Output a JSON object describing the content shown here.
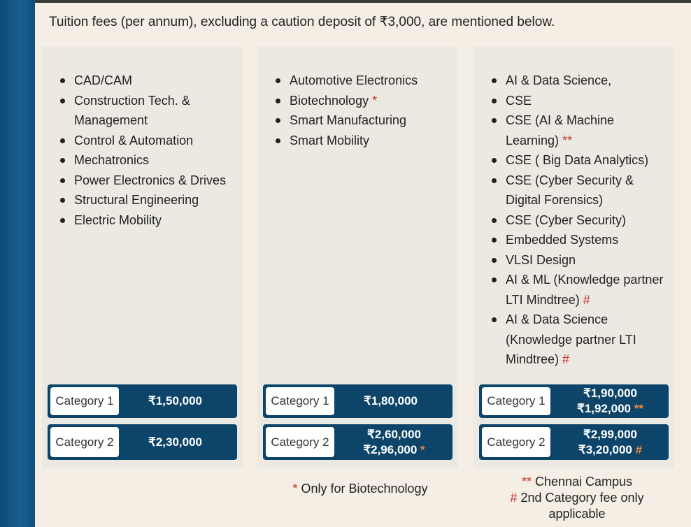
{
  "intro": "Tuition fees (per annum), excluding a caution deposit of ₹3,000, are mentioned below.",
  "colors": {
    "sidebar": "#0d4a78",
    "fee_bar": "#0d4469",
    "mark_red": "#c0392b",
    "mark_orange": "#f0893a"
  },
  "columns": [
    {
      "items": [
        {
          "text": "CAD/CAM"
        },
        {
          "text": "Construction Tech. & Management"
        },
        {
          "text": "Control & Automation"
        },
        {
          "text": "Mechatronics"
        },
        {
          "text": "Power Electronics & Drives"
        },
        {
          "text": "Structural Engineering"
        },
        {
          "text": "Electric Mobility"
        }
      ],
      "fees": [
        {
          "label": "Category 1",
          "amounts": [
            {
              "value": "₹1,50,000"
            }
          ]
        },
        {
          "label": "Category 2",
          "amounts": [
            {
              "value": "₹2,30,000"
            }
          ]
        }
      ]
    },
    {
      "items": [
        {
          "text": "Automotive Electronics"
        },
        {
          "text": "Biotechnology",
          "mark": "*"
        },
        {
          "text": "Smart Manufacturing"
        },
        {
          "text": "Smart Mobility"
        }
      ],
      "fees": [
        {
          "label": "Category 1",
          "amounts": [
            {
              "value": "₹1,80,000"
            }
          ]
        },
        {
          "label": "Category 2",
          "amounts": [
            {
              "value": "₹2,60,000"
            },
            {
              "value": "₹2,96,000",
              "mark": "*"
            }
          ]
        }
      ]
    },
    {
      "items": [
        {
          "text": "AI & Data Science,"
        },
        {
          "text": "CSE"
        },
        {
          "text": "CSE (AI & Machine Learning)",
          "mark": "**"
        },
        {
          "text": "CSE ( Big Data Analytics)"
        },
        {
          "text": "CSE (Cyber Security & Digital Forensics)"
        },
        {
          "text": "CSE (Cyber Security)"
        },
        {
          "text": "Embedded Systems"
        },
        {
          "text": "VLSI Design"
        },
        {
          "text": "AI & ML (Knowledge partner LTI Mindtree)",
          "mark": "#"
        },
        {
          "text": "AI & Data Science (Knowledge partner LTI Mindtree)",
          "mark": "#"
        }
      ],
      "fees": [
        {
          "label": "Category 1",
          "amounts": [
            {
              "value": "₹1,90,000"
            },
            {
              "value": "₹1,92,000",
              "mark": "**"
            }
          ]
        },
        {
          "label": "Category 2",
          "amounts": [
            {
              "value": "₹2,99,000"
            },
            {
              "value": "₹3,20,000",
              "mark": "#"
            }
          ]
        }
      ]
    }
  ],
  "notes": {
    "biotech": {
      "mark": "*",
      "text": "Only for Biotechnology"
    },
    "chennai": {
      "mark": "**",
      "text": "Chennai Campus"
    },
    "second": {
      "mark": "#",
      "text": "2nd Category fee only applicable"
    }
  }
}
